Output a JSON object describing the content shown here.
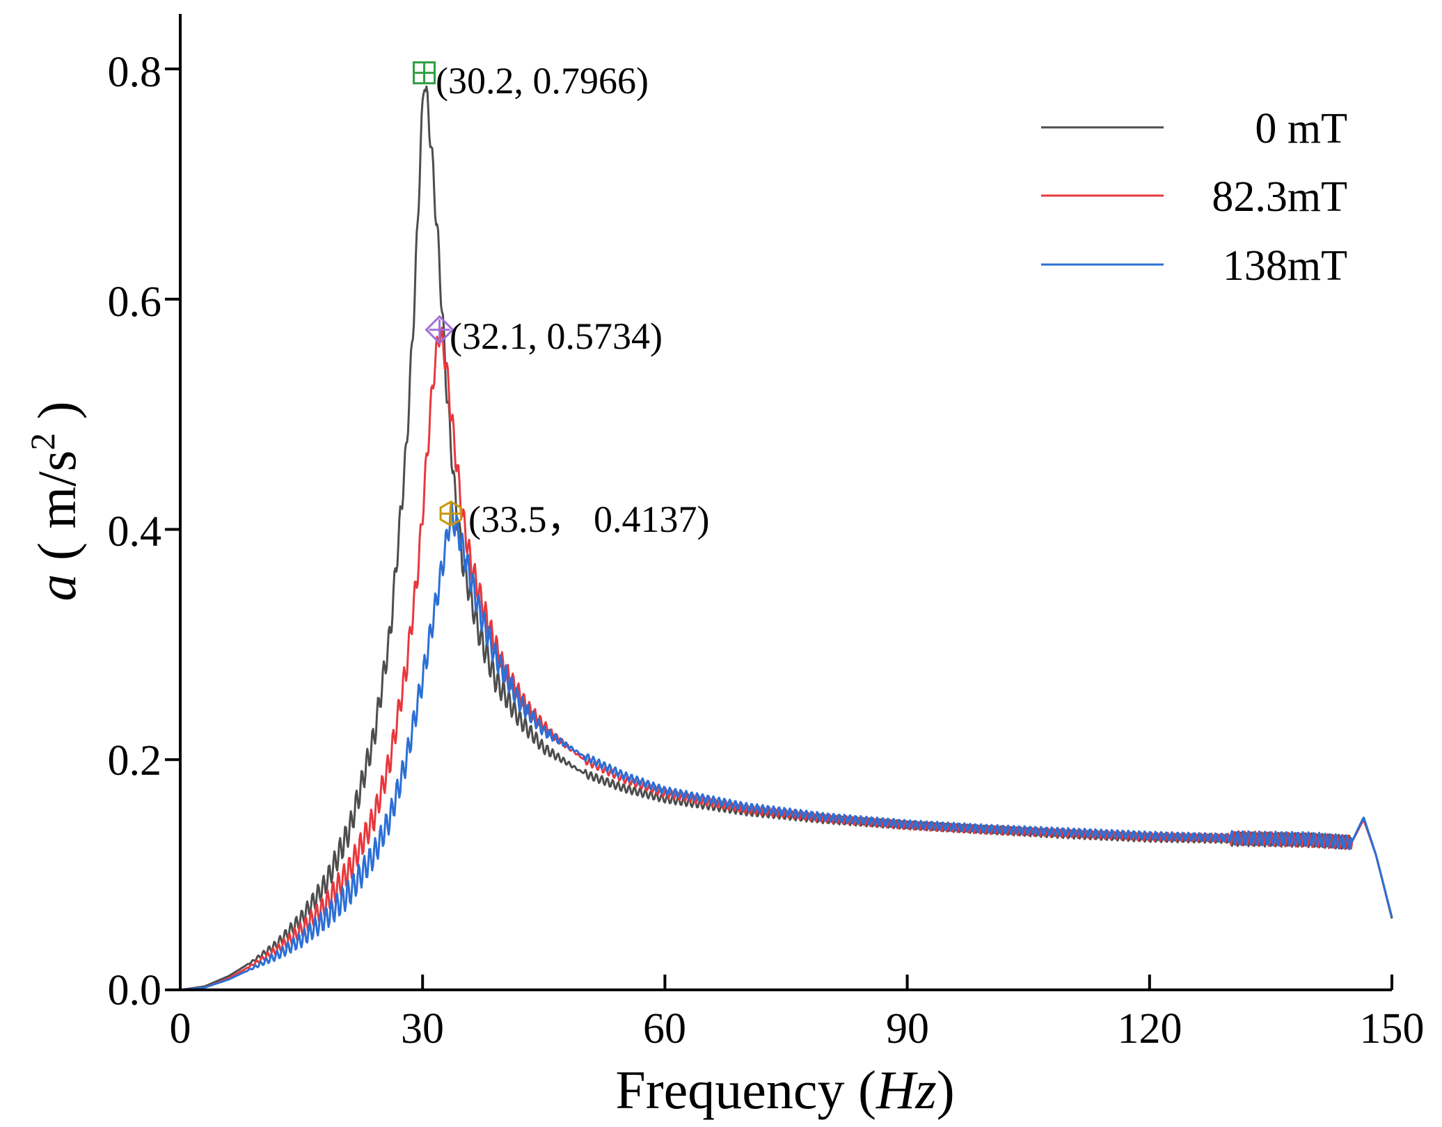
{
  "chart_data": {
    "type": "line",
    "xlabel_main": "Frequency (",
    "xlabel_unit": "Hz",
    "xlabel_close": ")",
    "ylabel_var": "a",
    "ylabel_unit_open": " ( m/s",
    "ylabel_unit_sup": "2",
    "ylabel_unit_close": " )",
    "xlim": [
      0,
      150
    ],
    "ylim": [
      0,
      0.85
    ],
    "x_ticks": [
      0,
      30,
      60,
      90,
      120,
      150
    ],
    "x_tick_labels": [
      "0",
      "30",
      "60",
      "90",
      "120",
      "150"
    ],
    "y_ticks": [
      0,
      0.2,
      0.4,
      0.6,
      0.8
    ],
    "y_tick_labels": [
      "0.0",
      "0.2",
      "0.4",
      "0.6",
      "0.8"
    ],
    "grid": false,
    "legend_position": "top-right",
    "series": [
      {
        "name": "0 mT",
        "color": "#4d4d4d",
        "peak": {
          "x": 30.2,
          "y": 0.7966
        },
        "points": [
          [
            0,
            0
          ],
          [
            3,
            0.003
          ],
          [
            6,
            0.012
          ],
          [
            9,
            0.025
          ],
          [
            12,
            0.04
          ],
          [
            15,
            0.062
          ],
          [
            18,
            0.092
          ],
          [
            21,
            0.14
          ],
          [
            24,
            0.22
          ],
          [
            26,
            0.31
          ],
          [
            28,
            0.47
          ],
          [
            29,
            0.6
          ],
          [
            29.7,
            0.72
          ],
          [
            30.2,
            0.7966
          ],
          [
            31,
            0.74
          ],
          [
            32,
            0.64
          ],
          [
            33,
            0.52
          ],
          [
            34,
            0.43
          ],
          [
            35,
            0.37
          ],
          [
            37,
            0.31
          ],
          [
            39,
            0.27
          ],
          [
            42,
            0.235
          ],
          [
            45,
            0.21
          ],
          [
            50,
            0.188
          ],
          [
            55,
            0.175
          ],
          [
            60,
            0.166
          ],
          [
            70,
            0.155
          ],
          [
            80,
            0.148
          ],
          [
            90,
            0.143
          ],
          [
            100,
            0.139
          ],
          [
            110,
            0.135
          ],
          [
            120,
            0.132
          ],
          [
            130,
            0.131
          ],
          [
            140,
            0.13
          ],
          [
            145,
            0.128
          ],
          [
            146.5,
            0.148
          ],
          [
            148,
            0.118
          ],
          [
            150,
            0.062
          ]
        ]
      },
      {
        "name": "82.3mT",
        "color": "#e8383d",
        "peak": {
          "x": 32.1,
          "y": 0.5734
        },
        "points": [
          [
            0,
            0
          ],
          [
            3,
            0.002
          ],
          [
            6,
            0.01
          ],
          [
            9,
            0.022
          ],
          [
            12,
            0.035
          ],
          [
            15,
            0.052
          ],
          [
            18,
            0.074
          ],
          [
            21,
            0.105
          ],
          [
            24,
            0.15
          ],
          [
            26,
            0.2
          ],
          [
            28,
            0.28
          ],
          [
            29.5,
            0.37
          ],
          [
            30.5,
            0.46
          ],
          [
            31.3,
            0.53
          ],
          [
            32.1,
            0.5734
          ],
          [
            32.8,
            0.55
          ],
          [
            34,
            0.47
          ],
          [
            35,
            0.41
          ],
          [
            36,
            0.37
          ],
          [
            38,
            0.32
          ],
          [
            40,
            0.28
          ],
          [
            43,
            0.245
          ],
          [
            46,
            0.222
          ],
          [
            50,
            0.2
          ],
          [
            55,
            0.183
          ],
          [
            60,
            0.171
          ],
          [
            70,
            0.157
          ],
          [
            80,
            0.149
          ],
          [
            90,
            0.143
          ],
          [
            100,
            0.139
          ],
          [
            110,
            0.136
          ],
          [
            120,
            0.133
          ],
          [
            130,
            0.132
          ],
          [
            140,
            0.13
          ],
          [
            145,
            0.128
          ],
          [
            146.5,
            0.148
          ],
          [
            148,
            0.118
          ],
          [
            150,
            0.063
          ]
        ]
      },
      {
        "name": "138mT",
        "color": "#2b6fd6",
        "peak": {
          "x": 33.5,
          "y": 0.4137
        },
        "points": [
          [
            0,
            0
          ],
          [
            3,
            0.002
          ],
          [
            6,
            0.009
          ],
          [
            9,
            0.019
          ],
          [
            12,
            0.03
          ],
          [
            15,
            0.044
          ],
          [
            18,
            0.062
          ],
          [
            21,
            0.085
          ],
          [
            24,
            0.118
          ],
          [
            26,
            0.15
          ],
          [
            28,
            0.2
          ],
          [
            30,
            0.27
          ],
          [
            31.5,
            0.33
          ],
          [
            32.5,
            0.37
          ],
          [
            33.5,
            0.4137
          ],
          [
            34.3,
            0.4
          ],
          [
            35.5,
            0.37
          ],
          [
            37,
            0.33
          ],
          [
            39,
            0.29
          ],
          [
            42,
            0.25
          ],
          [
            45,
            0.225
          ],
          [
            50,
            0.203
          ],
          [
            55,
            0.186
          ],
          [
            60,
            0.173
          ],
          [
            70,
            0.159
          ],
          [
            80,
            0.15
          ],
          [
            90,
            0.144
          ],
          [
            100,
            0.14
          ],
          [
            110,
            0.137
          ],
          [
            120,
            0.134
          ],
          [
            130,
            0.132
          ],
          [
            140,
            0.131
          ],
          [
            145,
            0.128
          ],
          [
            146.5,
            0.15
          ],
          [
            148,
            0.118
          ],
          [
            150,
            0.063
          ]
        ]
      }
    ],
    "annotations": [
      {
        "label": "(30.2, 0.7966)",
        "x": 30.2,
        "y": 0.7966,
        "marker": "square-cross",
        "color": "#2ea043"
      },
      {
        "label": "(32.1, 0.5734)",
        "x": 32.1,
        "y": 0.5734,
        "marker": "diamond-cross",
        "color": "#a070d6"
      },
      {
        "label": "(33.5， 0.4137)",
        "x": 33.5,
        "y": 0.4137,
        "marker": "hexagon-cross",
        "color": "#c8960a"
      }
    ]
  }
}
